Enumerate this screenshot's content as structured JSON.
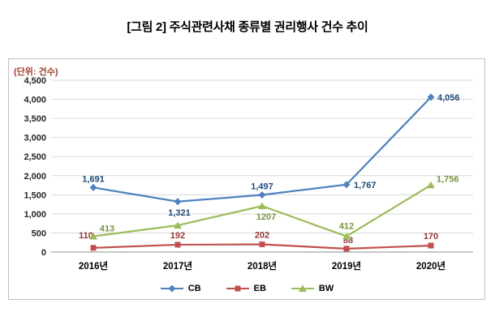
{
  "chart_data": {
    "type": "line",
    "title": "[그림 2] 주식관련사채 종류별 권리행사 건수 추이",
    "unit_label": "(단위: 건수)",
    "categories": [
      "2016년",
      "2017년",
      "2018년",
      "2019년",
      "2020년"
    ],
    "series": [
      {
        "name": "CB",
        "color": "#4F81BD",
        "label_color": "#1F497D",
        "marker": "diamond",
        "values": [
          1691,
          1321,
          1497,
          1767,
          4056
        ],
        "labels": [
          "1,691",
          "1,321",
          "1,497",
          "1,767",
          "4,056"
        ]
      },
      {
        "name": "EB",
        "color": "#C0504D",
        "label_color": "#943634",
        "marker": "square",
        "values": [
          110,
          192,
          202,
          88,
          170
        ],
        "labels": [
          "110",
          "192",
          "202",
          "88",
          "170"
        ]
      },
      {
        "name": "BW",
        "color": "#9BBB59",
        "label_color": "#77933C",
        "marker": "triangle",
        "values": [
          413,
          700,
          1207,
          412,
          1756
        ],
        "labels": [
          "413",
          "",
          "1207",
          "412",
          "1,756"
        ]
      }
    ],
    "ylim": [
      0,
      4500
    ],
    "ytick_step": 500,
    "grid": true,
    "legend_position": "bottom",
    "grid_color": "#D9D9D9",
    "axis_color": "#8C8C8C"
  }
}
